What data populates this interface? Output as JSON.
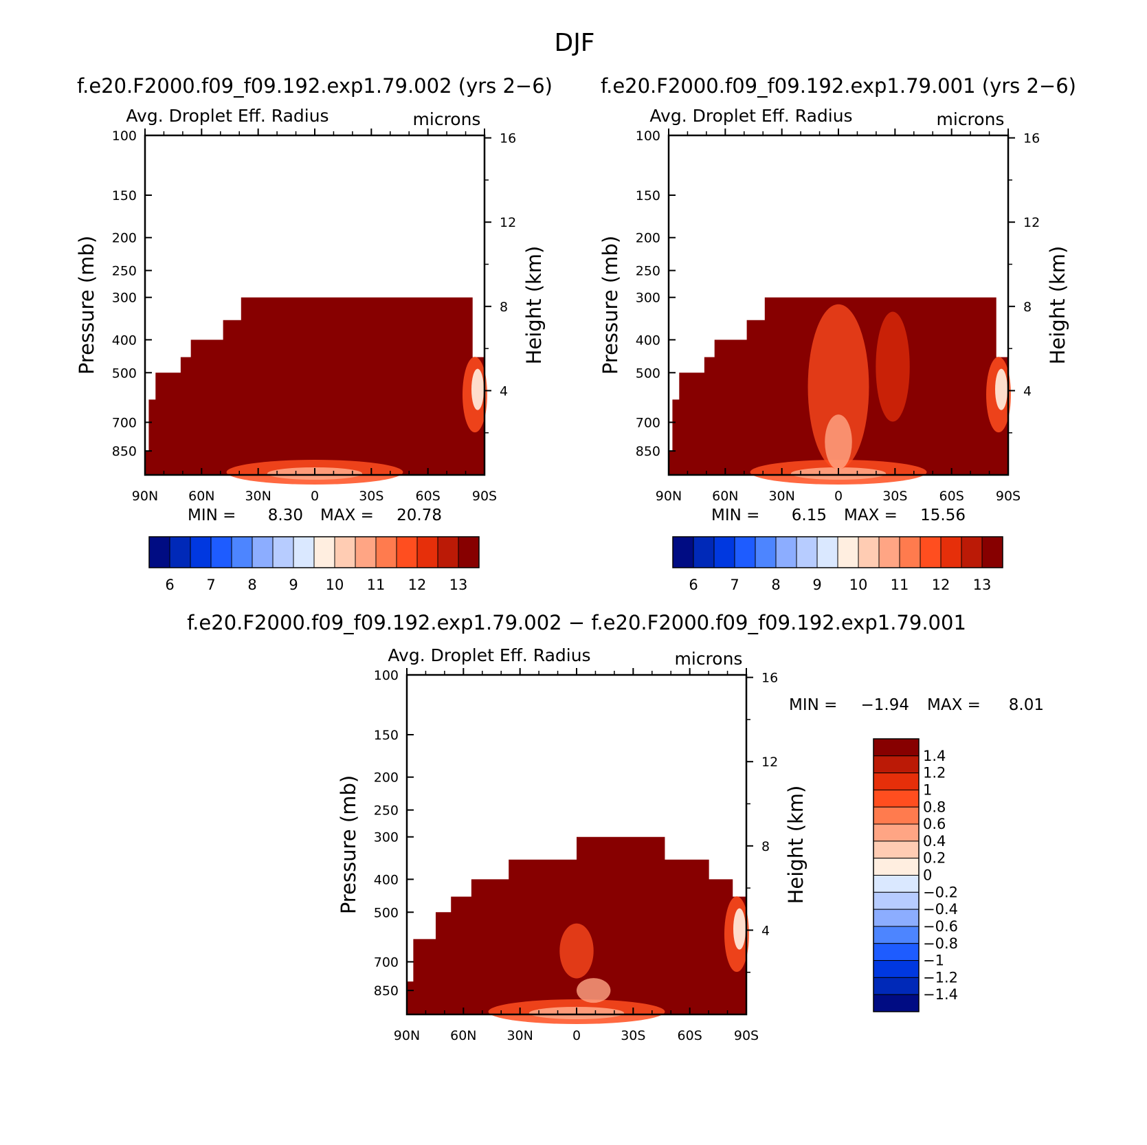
{
  "figure": {
    "title": "DJF",
    "colors": {
      "case_scale": [
        "#000c83",
        "#0029b8",
        "#0038e0",
        "#1e5cff",
        "#4d85ff",
        "#8cadff",
        "#b7ccff",
        "#dae8ff",
        "#ffeee0",
        "#ffccb3",
        "#ffa584",
        "#ff7b4e",
        "#ff4e1f",
        "#e62f0a",
        "#bb1a06",
        "#870000"
      ],
      "diff_scale": [
        "#870000",
        "#bb1a06",
        "#e62f0a",
        "#ff4e1f",
        "#ff7b4e",
        "#ffa584",
        "#ffccb3",
        "#ffeee0",
        "#dae8ff",
        "#b7ccff",
        "#8cadff",
        "#4d85ff",
        "#1e5cff",
        "#0038e0",
        "#0029b8",
        "#000c83"
      ]
    }
  },
  "chart_data": [
    {
      "type": "heatmap",
      "title": "f.e20.F2000.f09_f09.192.exp1.79.002 (yrs 2−6)",
      "subtitle": "Avg. Droplet Eff. Radius",
      "units": "microns",
      "ylabel": "Pressure (mb)",
      "y2label": "Height (km)",
      "x_ticks": [
        "90N",
        "60N",
        "30N",
        "0",
        "30S",
        "60S",
        "90S"
      ],
      "y_ticks": [
        "100",
        "150",
        "200",
        "250",
        "300",
        "400",
        "500",
        "700",
        "850"
      ],
      "y2_ticks": [
        "16",
        "12",
        "8",
        "4"
      ],
      "min_label": "MIN =",
      "min_value": "8.30",
      "max_label": "MAX =",
      "max_value": "20.78",
      "colorbar_labels": [
        "6",
        "7",
        "8",
        "9",
        "10",
        "11",
        "12",
        "13"
      ]
    },
    {
      "type": "heatmap",
      "title": "f.e20.F2000.f09_f09.192.exp1.79.001 (yrs 2−6)",
      "subtitle": "Avg. Droplet Eff. Radius",
      "units": "microns",
      "ylabel": "Pressure (mb)",
      "y2label": "Height (km)",
      "x_ticks": [
        "90N",
        "60N",
        "30N",
        "0",
        "30S",
        "60S",
        "90S"
      ],
      "y_ticks": [
        "100",
        "150",
        "200",
        "250",
        "300",
        "400",
        "500",
        "700",
        "850"
      ],
      "y2_ticks": [
        "16",
        "12",
        "8",
        "4"
      ],
      "min_label": "MIN =",
      "min_value": "6.15",
      "max_label": "MAX =",
      "max_value": "15.56",
      "colorbar_labels": [
        "6",
        "7",
        "8",
        "9",
        "10",
        "11",
        "12",
        "13"
      ]
    },
    {
      "type": "heatmap",
      "title": "f.e20.F2000.f09_f09.192.exp1.79.002 − f.e20.F2000.f09_f09.192.exp1.79.001",
      "subtitle": "Avg. Droplet Eff. Radius",
      "units": "microns",
      "ylabel": "Pressure (mb)",
      "y2label": "Height (km)",
      "x_ticks": [
        "90N",
        "60N",
        "30N",
        "0",
        "30S",
        "60S",
        "90S"
      ],
      "y_ticks": [
        "100",
        "150",
        "200",
        "250",
        "300",
        "400",
        "500",
        "700",
        "850"
      ],
      "y2_ticks": [
        "16",
        "12",
        "8",
        "4"
      ],
      "min_label": "MIN =",
      "min_value": "−1.94",
      "max_label": "MAX =",
      "max_value": "8.01",
      "colorbar_labels": [
        "1.4",
        "1.2",
        "1",
        "0.8",
        "0.6",
        "0.4",
        "0.2",
        "0",
        "−0.2",
        "−0.4",
        "−0.6",
        "−0.8",
        "−1",
        "−1.2",
        "−1.4"
      ]
    }
  ]
}
